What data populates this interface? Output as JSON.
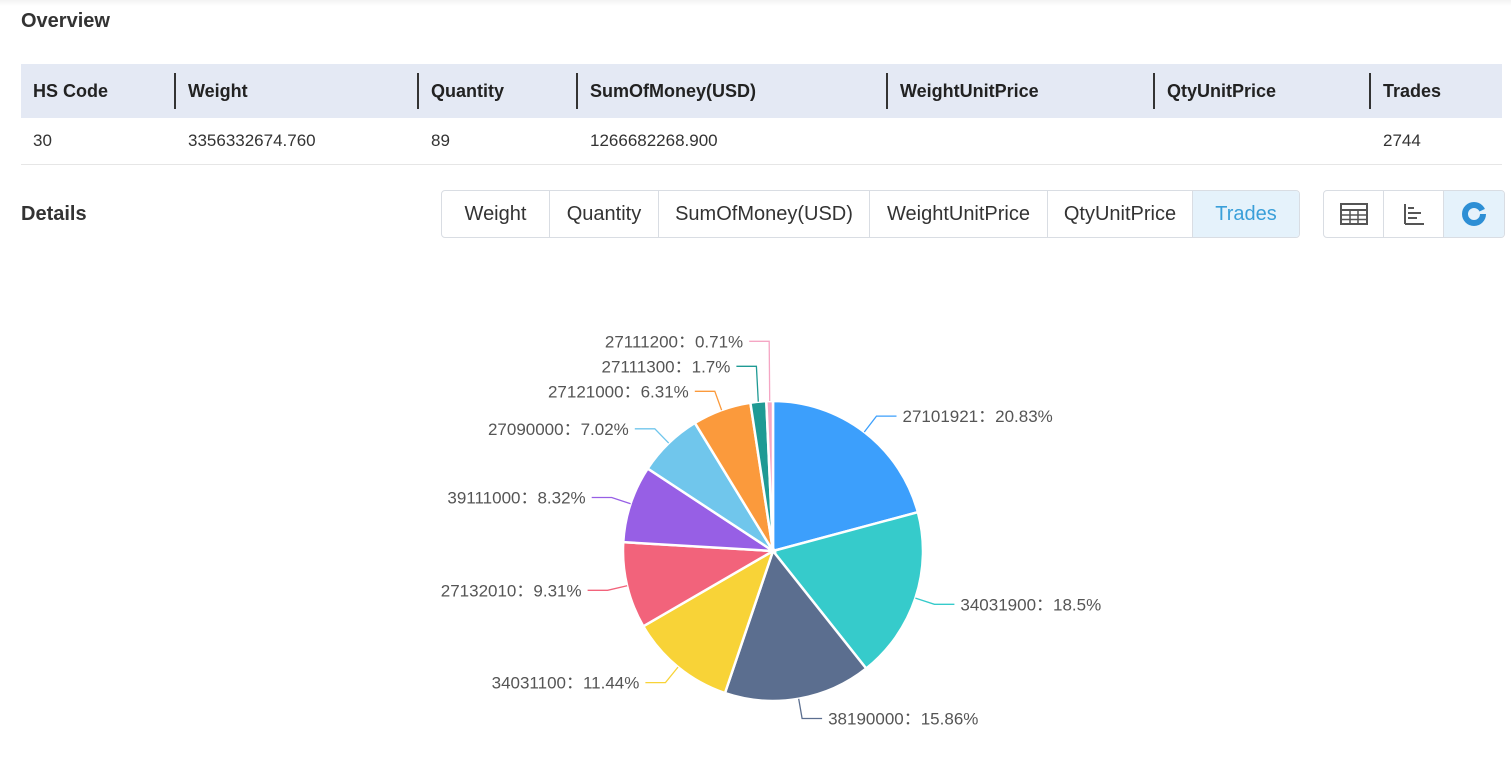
{
  "overview": {
    "title": "Overview",
    "columns": [
      "HS Code",
      "Weight",
      "Quantity",
      "SumOfMoney(USD)",
      "WeightUnitPrice",
      "QtyUnitPrice",
      "Trades"
    ],
    "row": [
      "30",
      "3356332674.760",
      "89",
      "1266682268.900",
      "",
      "",
      "2744"
    ]
  },
  "details": {
    "title": "Details",
    "metric_tabs": [
      "Weight",
      "Quantity",
      "SumOfMoney(USD)",
      "WeightUnitPrice",
      "QtyUnitPrice",
      "Trades"
    ],
    "active_metric": "Trades",
    "view_tabs": [
      {
        "icon": "table-icon"
      },
      {
        "icon": "bar-chart-icon"
      },
      {
        "icon": "pie-chart-icon"
      }
    ],
    "active_view": "pie-chart-icon"
  },
  "colors": {
    "active_tab_bg": "#e5f2fb",
    "active_tab_text": "#3a9fd9",
    "header_bg": "#e4e9f4"
  },
  "chart_data": {
    "type": "pie",
    "categories": [
      "27101921",
      "34031900",
      "38190000",
      "34031100",
      "27132010",
      "39111000",
      "27090000",
      "27121000",
      "27111300",
      "27111200"
    ],
    "values": [
      20.83,
      18.5,
      15.86,
      11.44,
      9.31,
      8.32,
      7.02,
      6.31,
      1.7,
      0.71
    ],
    "labels": [
      "27101921：20.83%",
      "34031900：18.5%",
      "38190000：15.86%",
      "34031100：11.44%",
      "27132010：9.31%",
      "39111000：8.32%",
      "27090000：7.02%",
      "27121000：6.31%",
      "27111300：1.7%",
      "27111200：0.71%"
    ],
    "colors": [
      "#3c9ffc",
      "#36cbcb",
      "#5b6e8f",
      "#f8d337",
      "#f2637b",
      "#975fe5",
      "#70c6ec",
      "#fb9a3c",
      "#1f9a94",
      "#f5a6c4"
    ],
    "title": "",
    "legend": "none"
  }
}
